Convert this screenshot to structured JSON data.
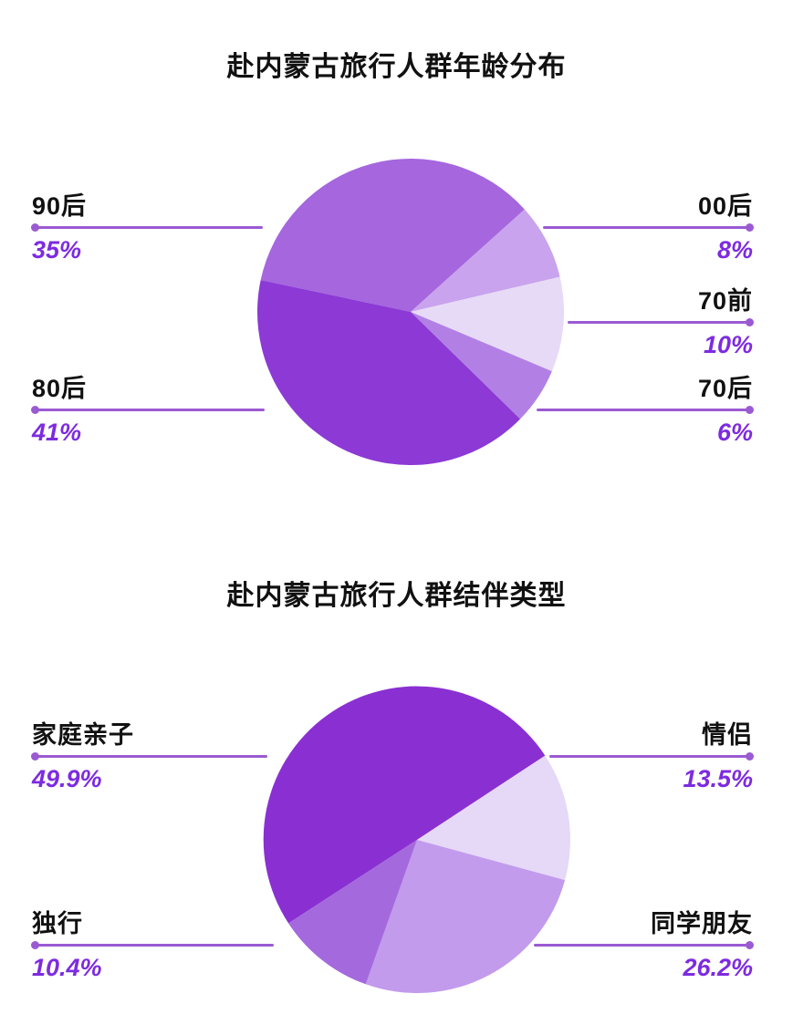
{
  "page": {
    "background": "#ffffff",
    "accent_color": "#8b2fd0",
    "line_color": "#9b5ad2",
    "value_text_color": "#7d2be0",
    "label_text_color": "#111111"
  },
  "charts": [
    {
      "title": "赴内蒙古旅行人群年龄分布",
      "chart_data": {
        "type": "pie",
        "categories": [
          "90后",
          "00后",
          "70前",
          "70后",
          "80后"
        ],
        "values": [
          35,
          8,
          10,
          6,
          41
        ],
        "unit": "percent",
        "value_labels": [
          "35%",
          "8%",
          "10%",
          "6%",
          "41%"
        ],
        "colors": [
          "#a566de",
          "#c9a3ed",
          "#e7daf6",
          "#b280e5",
          "#8c39d5"
        ],
        "start_angle_deg": 282,
        "direction": "clockwise",
        "legend_position": "side-callouts"
      },
      "callouts": {
        "left": [
          {
            "name": "90后",
            "value": "35%"
          },
          {
            "name": "80后",
            "value": "41%"
          }
        ],
        "right": [
          {
            "name": "00后",
            "value": "8%"
          },
          {
            "name": "70前",
            "value": "10%"
          },
          {
            "name": "70后",
            "value": "6%"
          }
        ]
      }
    },
    {
      "title": "赴内蒙古旅行人群结伴类型",
      "chart_data": {
        "type": "pie",
        "categories": [
          "家庭亲子",
          "情侣",
          "同学朋友",
          "独行"
        ],
        "values": [
          49.9,
          13.5,
          26.2,
          10.4
        ],
        "unit": "percent",
        "value_labels": [
          "49.9%",
          "13.5%",
          "26.2%",
          "10.4%"
        ],
        "colors": [
          "#8a30d2",
          "#e6d8f7",
          "#c29bec",
          "#a569de"
        ],
        "start_angle_deg": 237,
        "direction": "clockwise",
        "legend_position": "side-callouts"
      },
      "callouts": {
        "left": [
          {
            "name": "家庭亲子",
            "value": "49.9%"
          },
          {
            "name": "独行",
            "value": "10.4%"
          }
        ],
        "right": [
          {
            "name": "情侣",
            "value": "13.5%"
          },
          {
            "name": "同学朋友",
            "value": "26.2%"
          }
        ]
      }
    }
  ]
}
